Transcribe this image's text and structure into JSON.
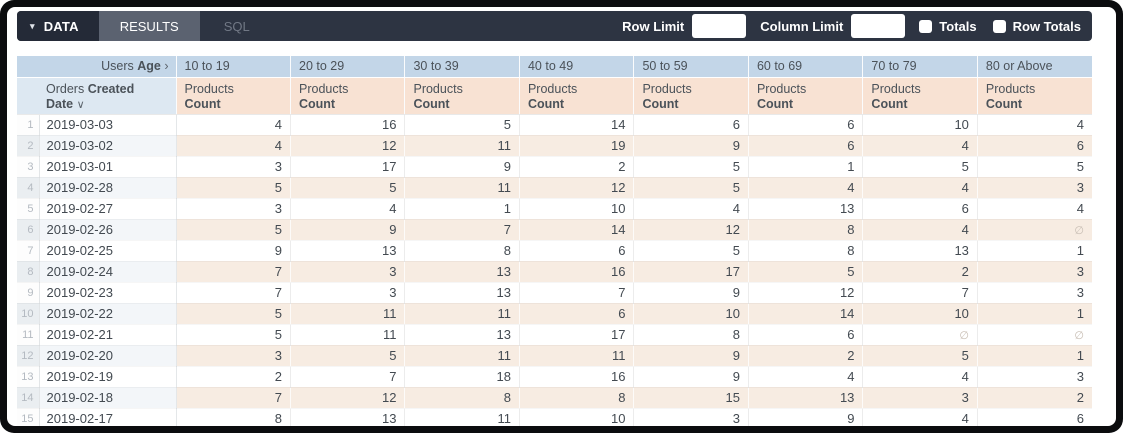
{
  "toolbar": {
    "tabs": [
      {
        "label": "DATA"
      },
      {
        "label": "RESULTS"
      },
      {
        "label": "SQL"
      }
    ],
    "caret_icon": "▾",
    "row_limit_label": "Row Limit",
    "row_limit_value": "",
    "column_limit_label": "Column Limit",
    "column_limit_value": "",
    "totals_label": "Totals",
    "totals_checked": false,
    "row_totals_label": "Row Totals",
    "row_totals_checked": false
  },
  "table": {
    "pivot_dimension": {
      "prefix": "Users",
      "name": "Age",
      "chevron": "›"
    },
    "row_dimension": {
      "prefix": "Orders",
      "bold1": "Created",
      "bold2": "Date",
      "sort_icon": "∨"
    },
    "measure": {
      "prefix": "Products",
      "name": "Count"
    },
    "age_buckets": [
      "10 to 19",
      "20 to 29",
      "30 to 39",
      "40 to 49",
      "50 to 59",
      "60 to 69",
      "70 to 79",
      "80 or Above"
    ],
    "null_symbol": "∅",
    "rows": [
      {
        "num": 1,
        "date": "2019-03-03",
        "values": [
          4,
          16,
          5,
          14,
          6,
          6,
          10,
          4
        ]
      },
      {
        "num": 2,
        "date": "2019-03-02",
        "values": [
          4,
          12,
          11,
          19,
          9,
          6,
          4,
          6
        ]
      },
      {
        "num": 3,
        "date": "2019-03-01",
        "values": [
          3,
          17,
          9,
          2,
          5,
          1,
          5,
          5
        ]
      },
      {
        "num": 4,
        "date": "2019-02-28",
        "values": [
          5,
          5,
          11,
          12,
          5,
          4,
          4,
          3
        ]
      },
      {
        "num": 5,
        "date": "2019-02-27",
        "values": [
          3,
          4,
          1,
          10,
          4,
          13,
          6,
          4
        ]
      },
      {
        "num": 6,
        "date": "2019-02-26",
        "values": [
          5,
          9,
          7,
          14,
          12,
          8,
          4,
          null
        ]
      },
      {
        "num": 7,
        "date": "2019-02-25",
        "values": [
          9,
          13,
          8,
          6,
          5,
          8,
          13,
          1
        ]
      },
      {
        "num": 8,
        "date": "2019-02-24",
        "values": [
          7,
          3,
          13,
          16,
          17,
          5,
          2,
          3
        ]
      },
      {
        "num": 9,
        "date": "2019-02-23",
        "values": [
          7,
          3,
          13,
          7,
          9,
          12,
          7,
          3
        ]
      },
      {
        "num": 10,
        "date": "2019-02-22",
        "values": [
          5,
          11,
          11,
          6,
          10,
          14,
          10,
          1
        ]
      },
      {
        "num": 11,
        "date": "2019-02-21",
        "values": [
          5,
          11,
          13,
          17,
          8,
          6,
          null,
          null
        ]
      },
      {
        "num": 12,
        "date": "2019-02-20",
        "values": [
          3,
          5,
          11,
          11,
          9,
          2,
          5,
          1
        ]
      },
      {
        "num": 13,
        "date": "2019-02-19",
        "values": [
          2,
          7,
          18,
          16,
          9,
          4,
          4,
          3
        ]
      },
      {
        "num": 14,
        "date": "2019-02-18",
        "values": [
          7,
          12,
          8,
          8,
          15,
          13,
          3,
          2
        ]
      },
      {
        "num": 15,
        "date": "2019-02-17",
        "values": [
          8,
          13,
          11,
          10,
          3,
          9,
          4,
          6
        ]
      }
    ]
  },
  "colors": {
    "toolbar_bg": "#2d3442",
    "tab_active_bg": "#242a37",
    "tab_results_bg": "#5b6270",
    "tab_inactive_fg": "#717885",
    "header_blue": "#c3d6e8",
    "header_lightblue": "#dde8f2",
    "header_peach": "#f8e2d3",
    "alt_peach": "#f7ece2",
    "alt_blue": "#f3f6f9",
    "alt_gutter": "#eaeef1",
    "text_dark": "#434a51",
    "header_fg": "#4b5259",
    "rownum_fg": "#b4bac1",
    "null_fg": "#c8beb4"
  }
}
